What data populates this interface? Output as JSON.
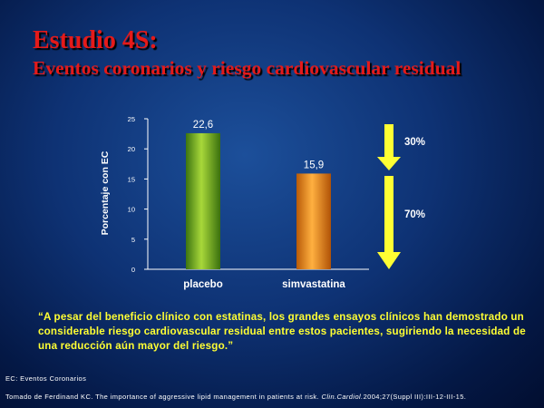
{
  "slide": {
    "title": "Estudio 4S:",
    "subtitle": "Eventos coronarios y riesgo cardiovascular residual"
  },
  "chart_data": {
    "type": "bar",
    "categories": [
      "placebo",
      "simvastatina"
    ],
    "values": [
      22.6,
      15.9
    ],
    "value_labels": [
      "22,6",
      "15,9"
    ],
    "bar_colors": [
      "#6fae1a",
      "#f08c1e"
    ],
    "ylabel": "Porcentaje con EC",
    "ylim": [
      0,
      25
    ],
    "yticks": [
      0,
      5,
      10,
      15,
      20,
      25
    ],
    "grid": false,
    "annotations": [
      {
        "text": "30%",
        "color": "#ffff33"
      },
      {
        "text": "70%",
        "color": "#ffff33"
      }
    ]
  },
  "quote": "“A pesar del beneficio clínico con estatinas, los grandes ensayos clínicos han demostrado un considerable riesgo cardiovascular residual entre estos pacientes, sugiriendo la necesidad de una reducción aún mayor del riesgo.”",
  "footer": {
    "abbreviation": "EC: Eventos Coronarios",
    "source_prefix": "Tomado de Ferdinand KC. The importance of aggressive lipid management in patients at risk.",
    "source_journal": "Clin.Cardiol.",
    "source_suffix": "2004;27(Suppl III):III-12-III-15."
  }
}
